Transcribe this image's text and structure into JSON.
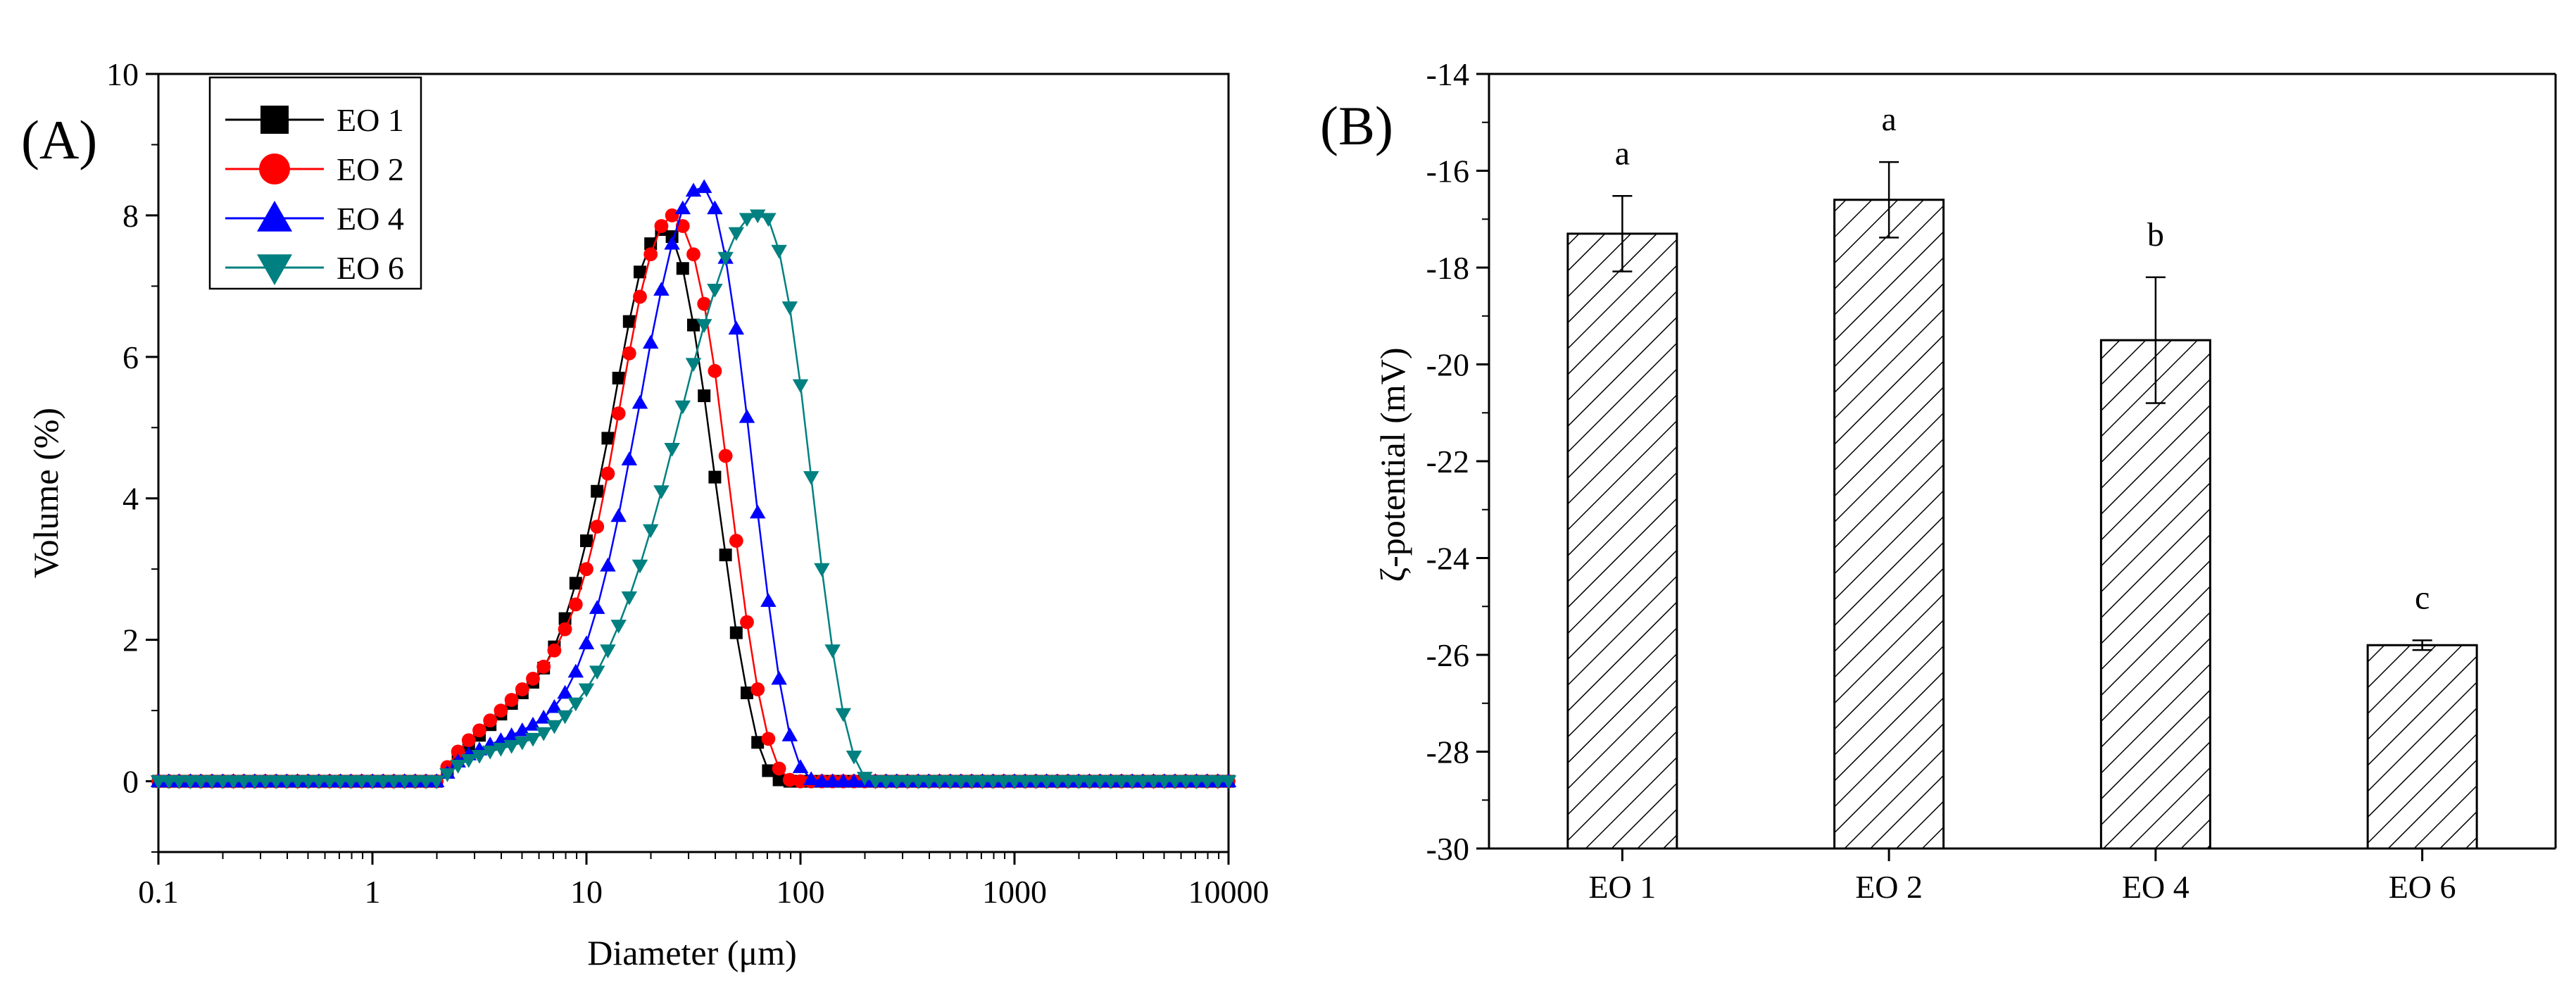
{
  "chart_data": [
    {
      "type": "line",
      "panel_label": "(A)",
      "xlabel": "Diameter (μm)",
      "ylabel": "Volume (%)",
      "x_scale": "log",
      "xlim": [
        0.1,
        10000
      ],
      "ylim": [
        -1,
        10
      ],
      "x_ticks": [
        0.1,
        1,
        10,
        100,
        1000,
        10000
      ],
      "x_tick_labels": [
        "0.1",
        "1",
        "10",
        "100",
        "1000",
        "10000"
      ],
      "y_ticks": [
        0,
        2,
        4,
        6,
        8,
        10
      ],
      "y_tick_labels": [
        "0",
        "2",
        "4",
        "6",
        "8",
        "10"
      ],
      "grid": false,
      "legend_position": "top-left",
      "colors": {
        "EO 1": "#000000",
        "EO 2": "#ff0000",
        "EO 4": "#0000ff",
        "EO 6": "#008080"
      },
      "markers": {
        "EO 1": "square",
        "EO 2": "circle",
        "EO 4": "triangle-up",
        "EO 6": "triangle-down"
      },
      "x": [
        0.1,
        0.112,
        0.125,
        0.141,
        0.158,
        0.178,
        0.2,
        0.224,
        0.251,
        0.282,
        0.316,
        0.355,
        0.398,
        0.447,
        0.501,
        0.562,
        0.631,
        0.708,
        0.794,
        0.891,
        1.0,
        1.122,
        1.259,
        1.413,
        1.585,
        1.778,
        1.995,
        2.239,
        2.512,
        2.818,
        3.162,
        3.548,
        3.981,
        4.467,
        5.012,
        5.623,
        6.31,
        7.079,
        7.943,
        8.913,
        10.0,
        11.22,
        12.59,
        14.13,
        15.85,
        17.78,
        19.95,
        22.39,
        25.12,
        28.18,
        31.62,
        35.48,
        39.81,
        44.67,
        50.12,
        56.23,
        63.1,
        70.79,
        79.43,
        89.13,
        100.0,
        112.2,
        125.9,
        141.3,
        158.5,
        177.8,
        199.5,
        223.9,
        251.2,
        281.8,
        316.2,
        354.8,
        398.1,
        446.7,
        501.2,
        562.3,
        631.0,
        707.9,
        794.3,
        891.3,
        1000.0,
        1122.0,
        1259.0,
        1413.0,
        1585.0,
        1778.0,
        1995.0,
        2239.0,
        2512.0,
        2818.0,
        3162.0,
        3548.0,
        3981.0,
        4467.0,
        5012.0,
        5623.0,
        6310.0,
        7079.0,
        7943.0,
        8913.0,
        10000.0
      ],
      "series": [
        {
          "name": "EO 1",
          "values": [
            0.0,
            0.0,
            0.0,
            0.0,
            0.0,
            0.0,
            0.0,
            0.0,
            0.0,
            0.0,
            0.0,
            0.0,
            0.0,
            0.0,
            0.0,
            0.0,
            0.0,
            0.0,
            0.0,
            0.0,
            0.0,
            0.0,
            0.0,
            0.0,
            0.0,
            0.0,
            0.0,
            0.15,
            0.35,
            0.5,
            0.65,
            0.8,
            0.95,
            1.1,
            1.25,
            1.4,
            1.6,
            1.9,
            2.3,
            2.8,
            3.4,
            4.1,
            4.85,
            5.7,
            6.5,
            7.2,
            7.6,
            7.8,
            7.7,
            7.25,
            6.45,
            5.45,
            4.3,
            3.2,
            2.1,
            1.25,
            0.55,
            0.15,
            0.02,
            0.0,
            0.0,
            0.0,
            0.0,
            0.0,
            0.0,
            0.0,
            0.0,
            0.0,
            0.0,
            0.0,
            0.0,
            0.0,
            0.0,
            0.0,
            0.0,
            0.0,
            0.0,
            0.0,
            0.0,
            0.0,
            0.0,
            0.0,
            0.0,
            0.0,
            0.0,
            0.0,
            0.0,
            0.0,
            0.0,
            0.0,
            0.0,
            0.0,
            0.0,
            0.0,
            0.0,
            0.0,
            0.0,
            0.0,
            0.0,
            0.0,
            0.0
          ]
        },
        {
          "name": "EO 2",
          "values": [
            0.0,
            0.0,
            0.0,
            0.0,
            0.0,
            0.0,
            0.0,
            0.0,
            0.0,
            0.0,
            0.0,
            0.0,
            0.0,
            0.0,
            0.0,
            0.0,
            0.0,
            0.0,
            0.0,
            0.0,
            0.0,
            0.0,
            0.0,
            0.0,
            0.0,
            0.0,
            0.0,
            0.2,
            0.42,
            0.58,
            0.72,
            0.86,
            1.0,
            1.15,
            1.3,
            1.45,
            1.62,
            1.85,
            2.15,
            2.5,
            3.0,
            3.6,
            4.35,
            5.2,
            6.05,
            6.85,
            7.45,
            7.85,
            8.0,
            7.85,
            7.45,
            6.75,
            5.8,
            4.6,
            3.4,
            2.25,
            1.3,
            0.6,
            0.18,
            0.02,
            0.0,
            0.0,
            0.0,
            0.0,
            0.0,
            0.0,
            0.0,
            0.0,
            0.0,
            0.0,
            0.0,
            0.0,
            0.0,
            0.0,
            0.0,
            0.0,
            0.0,
            0.0,
            0.0,
            0.0,
            0.0,
            0.0,
            0.0,
            0.0,
            0.0,
            0.0,
            0.0,
            0.0,
            0.0,
            0.0,
            0.0,
            0.0,
            0.0,
            0.0,
            0.0,
            0.0,
            0.0,
            0.0,
            0.0,
            0.0,
            0.0
          ]
        },
        {
          "name": "EO 4",
          "values": [
            0.0,
            0.0,
            0.0,
            0.0,
            0.0,
            0.0,
            0.0,
            0.0,
            0.0,
            0.0,
            0.0,
            0.0,
            0.0,
            0.0,
            0.0,
            0.0,
            0.0,
            0.0,
            0.0,
            0.0,
            0.0,
            0.0,
            0.0,
            0.0,
            0.0,
            0.0,
            0.0,
            0.12,
            0.28,
            0.38,
            0.45,
            0.52,
            0.58,
            0.65,
            0.72,
            0.8,
            0.9,
            1.05,
            1.25,
            1.55,
            1.95,
            2.45,
            3.05,
            3.75,
            4.55,
            5.35,
            6.2,
            6.95,
            7.6,
            8.1,
            8.35,
            8.4,
            8.1,
            7.4,
            6.4,
            5.15,
            3.8,
            2.55,
            1.45,
            0.65,
            0.2,
            0.03,
            0.0,
            0.0,
            0.0,
            0.0,
            0.0,
            0.0,
            0.0,
            0.0,
            0.0,
            0.0,
            0.0,
            0.0,
            0.0,
            0.0,
            0.0,
            0.0,
            0.0,
            0.0,
            0.0,
            0.0,
            0.0,
            0.0,
            0.0,
            0.0,
            0.0,
            0.0,
            0.0,
            0.0,
            0.0,
            0.0,
            0.0,
            0.0,
            0.0,
            0.0,
            0.0,
            0.0,
            0.0,
            0.0,
            0.0
          ]
        },
        {
          "name": "EO 6",
          "values": [
            0.0,
            0.0,
            0.0,
            0.0,
            0.0,
            0.0,
            0.0,
            0.0,
            0.0,
            0.0,
            0.0,
            0.0,
            0.0,
            0.0,
            0.0,
            0.0,
            0.0,
            0.0,
            0.0,
            0.0,
            0.0,
            0.0,
            0.0,
            0.0,
            0.0,
            0.0,
            0.0,
            0.1,
            0.22,
            0.3,
            0.36,
            0.42,
            0.46,
            0.5,
            0.55,
            0.6,
            0.68,
            0.78,
            0.92,
            1.1,
            1.3,
            1.55,
            1.85,
            2.2,
            2.6,
            3.05,
            3.55,
            4.1,
            4.7,
            5.3,
            5.9,
            6.45,
            6.95,
            7.4,
            7.75,
            7.95,
            8.0,
            7.95,
            7.5,
            6.7,
            5.6,
            4.3,
            3.0,
            1.85,
            0.95,
            0.35,
            0.05,
            0.0,
            0.0,
            0.0,
            0.0,
            0.0,
            0.0,
            0.0,
            0.0,
            0.0,
            0.0,
            0.0,
            0.0,
            0.0,
            0.0,
            0.0,
            0.0,
            0.0,
            0.0,
            0.0,
            0.0,
            0.0,
            0.0,
            0.0,
            0.0,
            0.0,
            0.0,
            0.0,
            0.0,
            0.0,
            0.0,
            0.0,
            0.0,
            0.0,
            0.0
          ]
        }
      ]
    },
    {
      "type": "bar",
      "panel_label": "(B)",
      "xlabel": "",
      "ylabel": "ζ-potential (mV)",
      "ylim": [
        -30,
        -14
      ],
      "y_ticks": [
        -30,
        -28,
        -26,
        -24,
        -22,
        -20,
        -18,
        -16,
        -14
      ],
      "y_tick_labels": [
        "-30",
        "-28",
        "-26",
        "-24",
        "-22",
        "-20",
        "-18",
        "-16",
        "-14"
      ],
      "grid": false,
      "bar_fill": "hatched",
      "categories": [
        "EO 1",
        "EO 2",
        "EO 4",
        "EO 6"
      ],
      "values": [
        -17.3,
        -16.6,
        -19.5,
        -25.8
      ],
      "errors": [
        0.78,
        0.78,
        1.3,
        0.1
      ],
      "significance": [
        "a",
        "a",
        "b",
        "c"
      ]
    }
  ]
}
